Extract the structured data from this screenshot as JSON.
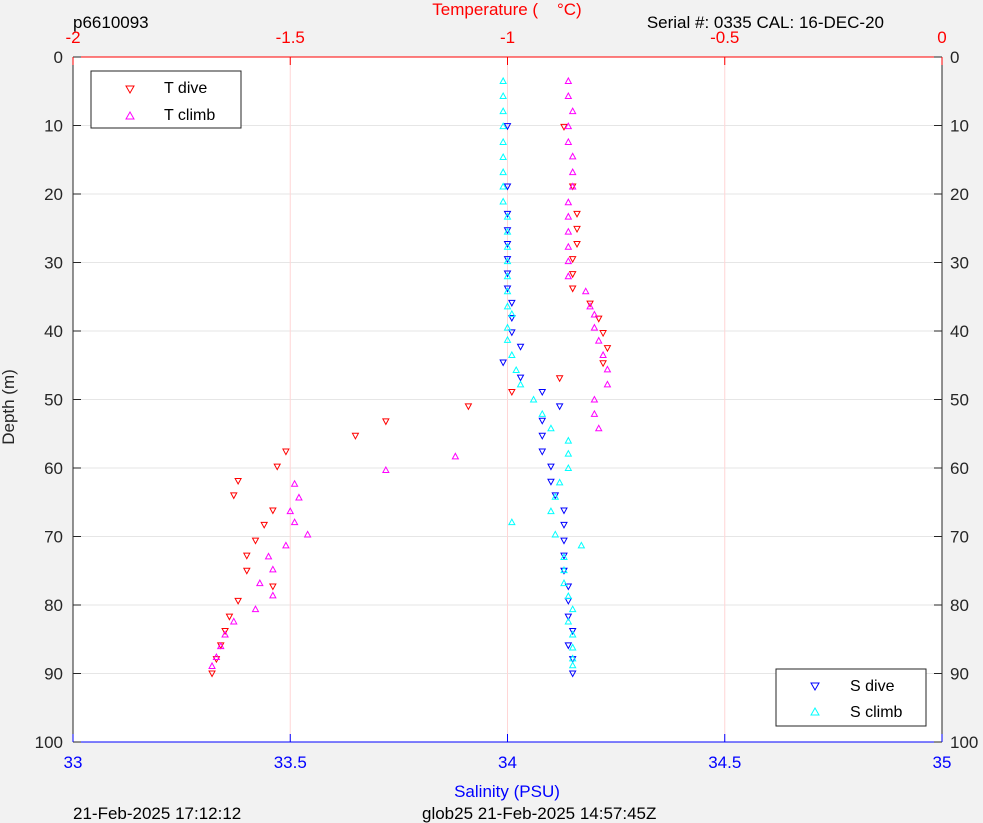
{
  "header": {
    "profile_id": "p6610093",
    "serial": "Serial #: 0335  CAL: 16-DEC-20"
  },
  "footer": {
    "left": "21-Feb-2025 17:12:12",
    "center": "glob25 21-Feb-2025 14:57:45Z"
  },
  "colors": {
    "temperature_axis": "#ff0000",
    "salinity_axis": "#0000ff",
    "t_dive": "#ff0000",
    "t_climb": "#ff00ff",
    "s_dive": "#0000ff",
    "s_climb": "#00ffff"
  },
  "chart_data": {
    "type": "scatter",
    "title": "",
    "ylabel": "Depth (m)",
    "top_xlabel": "Temperature (    °C)",
    "bottom_xlabel": "Salinity (PSU)",
    "ylim": [
      0,
      100
    ],
    "y_reversed": true,
    "temp_xlim": [
      -2,
      0
    ],
    "sal_xlim": [
      33,
      35
    ],
    "y_ticks": [
      0,
      10,
      20,
      30,
      40,
      50,
      60,
      70,
      80,
      90,
      100
    ],
    "temp_ticks": [
      -2,
      -1.5,
      -1,
      -0.5,
      0
    ],
    "sal_ticks": [
      33,
      33.5,
      34,
      34.5,
      35
    ],
    "grid": true,
    "legends": [
      {
        "placement": "top-left",
        "entries": [
          {
            "series": "t_dive",
            "label": "T dive"
          },
          {
            "series": "t_climb",
            "label": "T climb"
          }
        ]
      },
      {
        "placement": "bottom-right",
        "entries": [
          {
            "series": "s_dive",
            "label": "S dive"
          },
          {
            "series": "s_climb",
            "label": "S climb"
          }
        ]
      }
    ],
    "series": [
      {
        "name": "T dive",
        "key": "t_dive",
        "axis": "temperature",
        "marker": "triangle-down",
        "points": [
          [
            -0.87,
            10.2
          ],
          [
            -0.85,
            18.9
          ],
          [
            -0.84,
            22.9
          ],
          [
            -0.84,
            25.1
          ],
          [
            -0.84,
            27.3
          ],
          [
            -0.85,
            29.5
          ],
          [
            -0.85,
            31.7
          ],
          [
            -0.85,
            33.8
          ],
          [
            -0.81,
            36.0
          ],
          [
            -0.79,
            38.2
          ],
          [
            -0.78,
            40.3
          ],
          [
            -0.77,
            42.5
          ],
          [
            -0.78,
            44.7
          ],
          [
            -0.88,
            46.9
          ],
          [
            -0.99,
            48.9
          ],
          [
            -1.09,
            51.0
          ],
          [
            -1.28,
            53.2
          ],
          [
            -1.35,
            55.3
          ],
          [
            -1.51,
            57.6
          ],
          [
            -1.53,
            59.8
          ],
          [
            -1.62,
            61.9
          ],
          [
            -1.63,
            64.0
          ],
          [
            -1.54,
            66.2
          ],
          [
            -1.56,
            68.3
          ],
          [
            -1.58,
            70.6
          ],
          [
            -1.6,
            72.8
          ],
          [
            -1.6,
            75.0
          ],
          [
            -1.54,
            77.3
          ],
          [
            -1.62,
            79.4
          ],
          [
            -1.64,
            81.7
          ],
          [
            -1.65,
            83.8
          ],
          [
            -1.66,
            85.9
          ],
          [
            -1.67,
            87.9
          ],
          [
            -1.68,
            90.0
          ]
        ]
      },
      {
        "name": "T climb",
        "key": "t_climb",
        "axis": "temperature",
        "marker": "triangle-up",
        "points": [
          [
            -0.86,
            3.5
          ],
          [
            -0.86,
            5.7
          ],
          [
            -0.85,
            7.9
          ],
          [
            -0.86,
            10.1
          ],
          [
            -0.86,
            12.4
          ],
          [
            -0.85,
            14.5
          ],
          [
            -0.85,
            16.8
          ],
          [
            -0.85,
            18.9
          ],
          [
            -0.86,
            21.2
          ],
          [
            -0.86,
            23.3
          ],
          [
            -0.86,
            25.5
          ],
          [
            -0.86,
            27.7
          ],
          [
            -0.86,
            29.8
          ],
          [
            -0.86,
            32.0
          ],
          [
            -0.82,
            34.2
          ],
          [
            -0.81,
            36.4
          ],
          [
            -0.8,
            37.6
          ],
          [
            -0.8,
            39.5
          ],
          [
            -0.79,
            41.4
          ],
          [
            -0.78,
            43.5
          ],
          [
            -0.77,
            45.6
          ],
          [
            -0.77,
            47.8
          ],
          [
            -0.8,
            50.0
          ],
          [
            -0.8,
            52.1
          ],
          [
            -0.79,
            54.2
          ],
          [
            -1.12,
            58.3
          ],
          [
            -1.28,
            60.3
          ],
          [
            -1.49,
            62.3
          ],
          [
            -1.48,
            64.3
          ],
          [
            -1.5,
            66.3
          ],
          [
            -1.49,
            67.9
          ],
          [
            -1.46,
            69.7
          ],
          [
            -1.51,
            71.3
          ],
          [
            -1.55,
            72.9
          ],
          [
            -1.54,
            74.8
          ],
          [
            -1.57,
            76.8
          ],
          [
            -1.54,
            78.6
          ],
          [
            -1.58,
            80.6
          ],
          [
            -1.63,
            82.4
          ],
          [
            -1.65,
            84.3
          ],
          [
            -1.66,
            86.0
          ],
          [
            -1.67,
            87.6
          ],
          [
            -1.68,
            88.9
          ]
        ]
      },
      {
        "name": "S dive",
        "key": "s_dive",
        "axis": "salinity",
        "marker": "triangle-down",
        "points": [
          [
            34.0,
            10.1
          ],
          [
            34.0,
            18.9
          ],
          [
            34.0,
            22.9
          ],
          [
            34.0,
            25.3
          ],
          [
            34.0,
            27.3
          ],
          [
            34.0,
            29.5
          ],
          [
            34.0,
            31.6
          ],
          [
            34.0,
            33.8
          ],
          [
            34.01,
            35.9
          ],
          [
            34.01,
            38.1
          ],
          [
            34.01,
            40.2
          ],
          [
            34.03,
            42.3
          ],
          [
            33.99,
            44.6
          ],
          [
            34.03,
            46.8
          ],
          [
            34.08,
            48.9
          ],
          [
            34.12,
            51.0
          ],
          [
            34.08,
            53.1
          ],
          [
            34.08,
            55.3
          ],
          [
            34.08,
            57.6
          ],
          [
            34.1,
            59.8
          ],
          [
            34.1,
            62.0
          ],
          [
            34.11,
            64.0
          ],
          [
            34.13,
            66.2
          ],
          [
            34.13,
            68.3
          ],
          [
            34.13,
            70.6
          ],
          [
            34.13,
            72.8
          ],
          [
            34.13,
            75.0
          ],
          [
            34.14,
            77.3
          ],
          [
            34.14,
            79.4
          ],
          [
            34.14,
            81.7
          ],
          [
            34.15,
            83.8
          ],
          [
            34.14,
            85.9
          ],
          [
            34.15,
            87.9
          ],
          [
            34.15,
            90.0
          ]
        ]
      },
      {
        "name": "S climb",
        "key": "s_climb",
        "axis": "salinity",
        "marker": "triangle-up",
        "points": [
          [
            33.99,
            3.5
          ],
          [
            33.99,
            5.7
          ],
          [
            33.99,
            7.9
          ],
          [
            33.99,
            10.1
          ],
          [
            33.99,
            12.4
          ],
          [
            33.99,
            14.6
          ],
          [
            33.99,
            16.8
          ],
          [
            33.99,
            18.9
          ],
          [
            33.99,
            21.1
          ],
          [
            34.0,
            23.3
          ],
          [
            34.0,
            25.5
          ],
          [
            34.0,
            27.7
          ],
          [
            34.0,
            29.8
          ],
          [
            34.0,
            32.0
          ],
          [
            34.0,
            34.2
          ],
          [
            34.0,
            36.4
          ],
          [
            34.01,
            37.5
          ],
          [
            34.0,
            39.5
          ],
          [
            34.0,
            41.3
          ],
          [
            34.01,
            43.5
          ],
          [
            34.02,
            45.7
          ],
          [
            34.03,
            47.8
          ],
          [
            34.06,
            50.0
          ],
          [
            34.08,
            52.1
          ],
          [
            34.1,
            54.2
          ],
          [
            34.14,
            56.0
          ],
          [
            34.14,
            57.9
          ],
          [
            34.14,
            60.0
          ],
          [
            34.12,
            62.1
          ],
          [
            34.11,
            64.2
          ],
          [
            34.1,
            66.3
          ],
          [
            34.01,
            67.9
          ],
          [
            34.11,
            69.7
          ],
          [
            34.17,
            71.3
          ],
          [
            34.13,
            73.0
          ],
          [
            34.13,
            74.9
          ],
          [
            34.13,
            76.8
          ],
          [
            34.14,
            78.7
          ],
          [
            34.15,
            80.6
          ],
          [
            34.14,
            82.4
          ],
          [
            34.15,
            84.3
          ],
          [
            34.15,
            86.2
          ],
          [
            34.15,
            87.8
          ],
          [
            34.15,
            88.8
          ]
        ]
      }
    ]
  }
}
